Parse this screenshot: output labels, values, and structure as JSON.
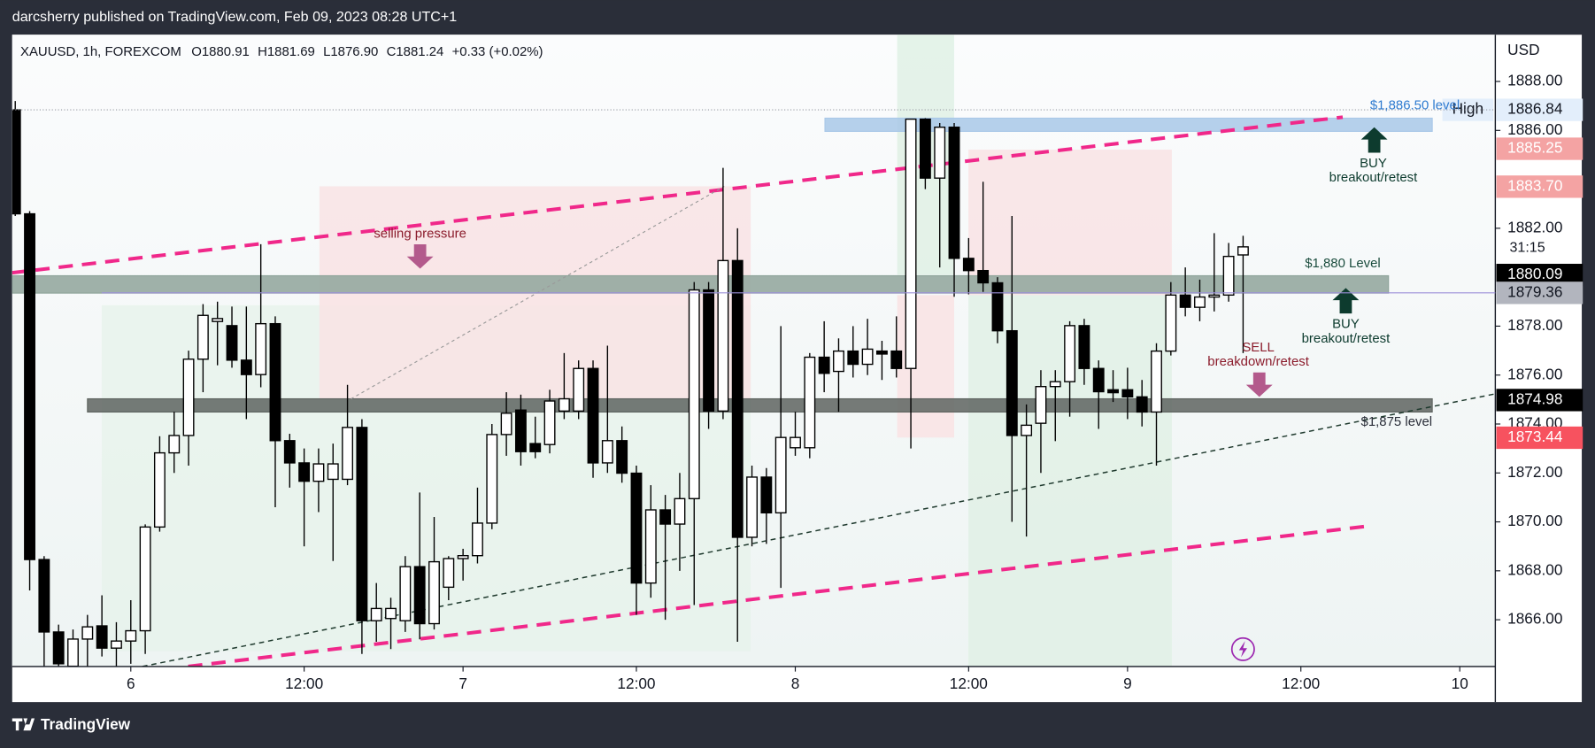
{
  "publisher": "darcsherry published on TradingView.com, Feb 09, 2023 08:28 UTC+1",
  "footer": "TradingView",
  "chart_data": {
    "type": "candlestick",
    "header": [
      "XAUUSD, 1h, FOREXCOM",
      "O1880.91",
      "H1881.69",
      "L1876.90",
      "C1881.24",
      "+0.33 (+0.02%)"
    ],
    "y_axis_label": "USD",
    "countdown": "31:15",
    "up_color": "#ffffff",
    "down_color": "#000000",
    "grid": false,
    "open": [
      1886.84,
      1882.59,
      1868.46,
      1865.5,
      1864.1,
      1865.21,
      1865.75,
      1864.84,
      1865.13,
      1865.55,
      1869.79,
      1872.82,
      1873.53,
      1876.65,
      1878.19,
      1878.02,
      1876.61,
      1876.02,
      1878.1,
      1873.32,
      1872.41,
      1871.66,
      1871.74,
      1871.74,
      1873.86,
      1865.96,
      1866.05,
      1865.96,
      1868.17,
      1865.84,
      1867.33,
      1868.5,
      1868.62,
      1869.95,
      1873.57,
      1874.57,
      1873.2,
      1873.16,
      1874.53,
      1874.53,
      1876.27,
      1872.41,
      1873.32,
      1871.99,
      1867.5,
      1870.49,
      1869.91,
      1870.95,
      1879.48,
      1874.53,
      1880.68,
      1869.37,
      1871.83,
      1870.37,
      1873.03,
      1873.03,
      1876.73,
      1876.15,
      1876.98,
      1876.44,
      1876.98,
      1876.98,
      1876.27,
      1886.46,
      1884.05,
      1886.13,
      1880.77,
      1880.27,
      1879.77,
      1877.81,
      1873.53,
      1874.03,
      1875.53,
      1875.73,
      1878.02,
      1876.27,
      1875.4,
      1875.4,
      1875.11,
      1874.49,
      1876.98,
      1879.27,
      1878.77,
      1879.19,
      1879.27,
      1880.91
    ],
    "high": [
      1887.2,
      1882.7,
      1868.6,
      1865.8,
      1865.6,
      1866.2,
      1867.0,
      1865.9,
      1866.8,
      1869.9,
      1873.5,
      1874.5,
      1877.0,
      1878.9,
      1879.0,
      1878.8,
      1878.8,
      1881.35,
      1878.4,
      1873.6,
      1873.0,
      1873.0,
      1873.2,
      1875.6,
      1874.2,
      1867.5,
      1866.9,
      1868.6,
      1871.2,
      1870.2,
      1868.6,
      1868.9,
      1871.4,
      1874.0,
      1875.3,
      1875.2,
      1874.3,
      1875.4,
      1876.9,
      1876.6,
      1876.6,
      1877.2,
      1873.9,
      1872.3,
      1871.5,
      1871.1,
      1872.0,
      1879.8,
      1879.8,
      1884.47,
      1882.0,
      1872.3,
      1872.2,
      1878.0,
      1874.5,
      1876.9,
      1878.2,
      1877.5,
      1878.0,
      1878.3,
      1877.4,
      1878.4,
      1886.46,
      1886.5,
      1886.3,
      1886.3,
      1881.6,
      1883.9,
      1880.0,
      1882.5,
      1874.8,
      1876.2,
      1876.2,
      1878.2,
      1878.3,
      1876.6,
      1876.2,
      1876.3,
      1875.8,
      1877.3,
      1879.8,
      1880.4,
      1879.9,
      1881.8,
      1881.4,
      1881.69
    ],
    "low": [
      1882.5,
      1867.2,
      1864.0,
      1863.8,
      1863.9,
      1864.0,
      1864.5,
      1864.0,
      1864.2,
      1864.6,
      1869.6,
      1872.0,
      1872.3,
      1875.3,
      1876.4,
      1876.3,
      1874.2,
      1875.5,
      1870.6,
      1871.4,
      1869.0,
      1870.4,
      1868.4,
      1871.5,
      1864.6,
      1865.1,
      1864.8,
      1865.5,
      1865.2,
      1865.6,
      1866.8,
      1867.6,
      1868.3,
      1869.7,
      1872.7,
      1872.3,
      1872.6,
      1872.8,
      1874.2,
      1874.2,
      1871.8,
      1872.0,
      1871.6,
      1866.2,
      1866.9,
      1866.0,
      1868.0,
      1866.6,
      1873.8,
      1874.2,
      1865.1,
      1869.0,
      1869.1,
      1867.3,
      1872.7,
      1872.6,
      1875.3,
      1874.5,
      1875.9,
      1876.0,
      1875.8,
      1875.9,
      1873.0,
      1883.6,
      1880.4,
      1879.2,
      1879.3,
      1879.4,
      1877.3,
      1870.0,
      1869.4,
      1872.0,
      1873.3,
      1874.3,
      1875.6,
      1873.8,
      1874.9,
      1874.2,
      1873.9,
      1872.3,
      1876.8,
      1878.4,
      1878.2,
      1878.6,
      1879.0,
      1876.9
    ],
    "close": [
      1882.59,
      1868.46,
      1865.5,
      1864.2,
      1865.21,
      1865.71,
      1864.84,
      1865.13,
      1865.55,
      1869.79,
      1872.82,
      1873.53,
      1876.65,
      1878.44,
      1878.31,
      1876.61,
      1876.02,
      1878.1,
      1873.32,
      1872.41,
      1871.66,
      1872.37,
      1872.37,
      1873.86,
      1865.96,
      1866.46,
      1866.46,
      1868.17,
      1865.84,
      1868.37,
      1868.5,
      1868.62,
      1869.95,
      1873.57,
      1874.44,
      1872.87,
      1872.87,
      1874.94,
      1875.03,
      1876.27,
      1872.41,
      1873.32,
      1871.99,
      1867.5,
      1870.49,
      1869.91,
      1870.95,
      1879.48,
      1874.53,
      1880.68,
      1869.37,
      1871.83,
      1870.37,
      1873.45,
      1873.45,
      1876.73,
      1876.07,
      1876.98,
      1876.44,
      1877.06,
      1876.86,
      1876.27,
      1886.46,
      1884.05,
      1886.13,
      1880.77,
      1880.27,
      1879.77,
      1877.81,
      1873.53,
      1873.95,
      1875.53,
      1875.73,
      1878.02,
      1876.27,
      1875.32,
      1875.28,
      1875.11,
      1874.49,
      1876.98,
      1879.27,
      1878.77,
      1879.19,
      1879.27,
      1880.85,
      1881.24
    ],
    "xlim": [
      -0.21,
      102.46
    ],
    "xticks": [
      {
        "value": 8,
        "label": "6"
      },
      {
        "value": 20,
        "label": "12:00"
      },
      {
        "value": 31,
        "label": "7"
      },
      {
        "value": 43,
        "label": "12:00"
      },
      {
        "value": 54,
        "label": "8"
      },
      {
        "value": 66,
        "label": "12:00"
      },
      {
        "value": 77,
        "label": "9"
      },
      {
        "value": 89,
        "label": "12:00"
      },
      {
        "value": 100,
        "label": "10"
      }
    ],
    "ylim": [
      1864.09,
      1889.91
    ],
    "yticks": [
      {
        "value": 1866,
        "label": "1866.00"
      },
      {
        "value": 1868,
        "label": "1868.00"
      },
      {
        "value": 1870,
        "label": "1870.00"
      },
      {
        "value": 1872,
        "label": "1872.00"
      },
      {
        "value": 1874,
        "label": "1874.00"
      },
      {
        "value": 1876,
        "label": "1876.00"
      },
      {
        "value": 1878,
        "label": "1878.00"
      },
      {
        "value": 1882,
        "label": "1882.00"
      },
      {
        "value": 1886,
        "label": "1886.00"
      },
      {
        "value": 1888,
        "label": "1888.00"
      }
    ],
    "zones": [
      {
        "label": "$1,886.50 level",
        "low": 1885.96,
        "high": 1886.5,
        "color": "#a9c8e8",
        "text_color": "#2f7bd0"
      },
      {
        "label": "$1,880 Level",
        "low": 1879.35,
        "high": 1880.06,
        "color": "#8fa59b",
        "text_color": "#1b4d3e"
      },
      {
        "label": "$1,875 level",
        "low": 1874.49,
        "high": 1875.03,
        "color": "#5e6460",
        "text_color": "#2a2e39"
      }
    ],
    "price_labels": [
      {
        "value": 1886.84,
        "label": "1886.84",
        "tag": "High",
        "color": "#e3eefb",
        "text_color": "#131722",
        "line": "dotted"
      },
      {
        "value": 1885.25,
        "label": "1885.25",
        "color": "#f4a3a3",
        "text_color": "#ffffff"
      },
      {
        "value": 1883.7,
        "label": "1883.70",
        "color": "#f4a3a3",
        "text_color": "#ffffff"
      },
      {
        "value": 1880.09,
        "label": "1880.09",
        "color": "#000000",
        "text_color": "#ffffff"
      },
      {
        "value": 1879.36,
        "label": "1879.36",
        "color": "#b2b5be",
        "text_color": "#131722",
        "line": "solid"
      },
      {
        "value": 1874.98,
        "label": "1874.98",
        "color": "#000000",
        "text_color": "#ffffff"
      },
      {
        "value": 1873.44,
        "label": "1873.44",
        "color": "#f7525f",
        "text_color": "#ffffff"
      }
    ],
    "notes": [
      "selling pressure",
      "BUY",
      "breakout/retest",
      "BUY",
      "breakout/retest",
      "SELL",
      "breakdown/retest"
    ]
  }
}
